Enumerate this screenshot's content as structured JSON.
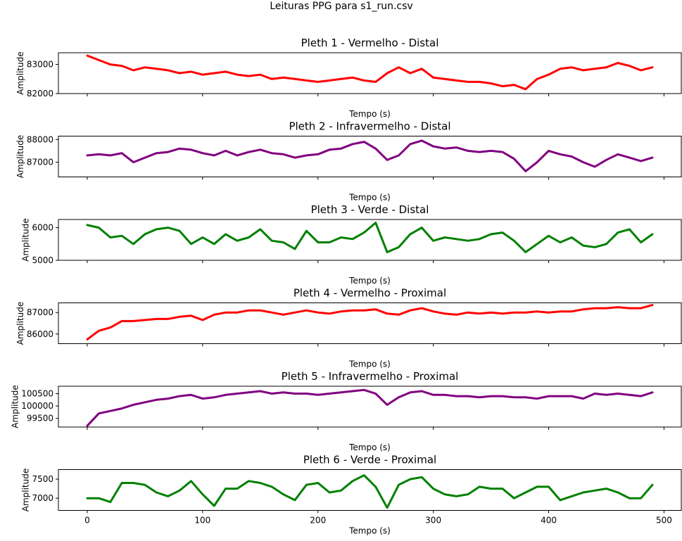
{
  "figure": {
    "suptitle": "Leituras PPG para s1_run.csv"
  },
  "chart_data": [
    {
      "type": "line",
      "title": "Pleth 1 - Vermelho - Distal",
      "xlabel": "Tempo (s)",
      "ylabel": "Amplitude",
      "xlim": [
        -25,
        515
      ],
      "ylim": [
        82000,
        83400
      ],
      "yticks": [
        82000,
        83000
      ],
      "xticks": [
        0,
        100,
        200,
        300,
        400,
        500
      ],
      "show_xticklabels": false,
      "grid": false,
      "series": [
        {
          "color": "#ff0000",
          "x": [
            0,
            10,
            20,
            30,
            40,
            50,
            60,
            70,
            80,
            90,
            100,
            110,
            120,
            130,
            140,
            150,
            160,
            170,
            180,
            190,
            200,
            210,
            220,
            230,
            240,
            250,
            260,
            270,
            280,
            290,
            300,
            310,
            320,
            330,
            340,
            350,
            360,
            370,
            380,
            390,
            400,
            410,
            420,
            430,
            440,
            450,
            460,
            470,
            480,
            490
          ],
          "y": [
            83300,
            83150,
            83000,
            82950,
            82800,
            82900,
            82850,
            82800,
            82700,
            82750,
            82650,
            82700,
            82750,
            82650,
            82600,
            82650,
            82500,
            82550,
            82500,
            82450,
            82400,
            82450,
            82500,
            82550,
            82450,
            82400,
            82700,
            82900,
            82700,
            82850,
            82550,
            82500,
            82450,
            82400,
            82400,
            82350,
            82250,
            82300,
            82150,
            82500,
            82650,
            82850,
            82900,
            82800,
            82850,
            82900,
            83050,
            82950,
            82800,
            82900
          ]
        }
      ]
    },
    {
      "type": "line",
      "title": "Pleth 2 - Infravermelho - Distal",
      "xlabel": "Tempo (s)",
      "ylabel": "Amplitude",
      "xlim": [
        -25,
        515
      ],
      "ylim": [
        86350,
        88150
      ],
      "yticks": [
        87000,
        88000
      ],
      "xticks": [
        0,
        100,
        200,
        300,
        400,
        500
      ],
      "show_xticklabels": false,
      "grid": false,
      "series": [
        {
          "color": "#800080",
          "x": [
            0,
            10,
            20,
            30,
            40,
            50,
            60,
            70,
            80,
            90,
            100,
            110,
            120,
            130,
            140,
            150,
            160,
            170,
            180,
            190,
            200,
            210,
            220,
            230,
            240,
            250,
            260,
            270,
            280,
            290,
            300,
            310,
            320,
            330,
            340,
            350,
            360,
            370,
            380,
            390,
            400,
            410,
            420,
            430,
            440,
            450,
            460,
            470,
            480,
            490
          ],
          "y": [
            87300,
            87350,
            87300,
            87400,
            87000,
            87200,
            87400,
            87450,
            87600,
            87550,
            87400,
            87300,
            87500,
            87300,
            87450,
            87550,
            87400,
            87350,
            87200,
            87300,
            87350,
            87550,
            87600,
            87800,
            87900,
            87600,
            87100,
            87300,
            87800,
            87950,
            87700,
            87600,
            87650,
            87500,
            87450,
            87500,
            87450,
            87150,
            86600,
            87000,
            87500,
            87350,
            87250,
            87000,
            86800,
            87100,
            87350,
            87200,
            87050,
            87200
          ]
        }
      ]
    },
    {
      "type": "line",
      "title": "Pleth 3 - Verde - Distal",
      "xlabel": "Tempo (s)",
      "ylabel": "Amplitude",
      "xlim": [
        -25,
        515
      ],
      "ylim": [
        5000,
        6250
      ],
      "yticks": [
        5000,
        6000
      ],
      "xticks": [
        0,
        100,
        200,
        300,
        400,
        500
      ],
      "show_xticklabels": false,
      "grid": false,
      "series": [
        {
          "color": "#008000",
          "x": [
            0,
            10,
            20,
            30,
            40,
            50,
            60,
            70,
            80,
            90,
            100,
            110,
            120,
            130,
            140,
            150,
            160,
            170,
            180,
            190,
            200,
            210,
            220,
            230,
            240,
            250,
            260,
            270,
            280,
            290,
            300,
            310,
            320,
            330,
            340,
            350,
            360,
            370,
            380,
            390,
            400,
            410,
            420,
            430,
            440,
            450,
            460,
            470,
            480,
            490
          ],
          "y": [
            6080,
            6000,
            5700,
            5750,
            5500,
            5800,
            5950,
            6000,
            5900,
            5500,
            5700,
            5500,
            5800,
            5600,
            5700,
            5950,
            5600,
            5550,
            5350,
            5900,
            5550,
            5550,
            5700,
            5650,
            5850,
            6150,
            5250,
            5400,
            5800,
            6000,
            5600,
            5700,
            5650,
            5600,
            5650,
            5800,
            5850,
            5600,
            5250,
            5500,
            5750,
            5550,
            5700,
            5450,
            5400,
            5500,
            5850,
            5950,
            5550,
            5800
          ]
        }
      ]
    },
    {
      "type": "line",
      "title": "Pleth 4 - Vermelho - Proximal",
      "xlabel": "Tempo (s)",
      "ylabel": "Amplitude",
      "xlim": [
        -25,
        515
      ],
      "ylim": [
        85550,
        87450
      ],
      "yticks": [
        86000,
        87000
      ],
      "xticks": [
        0,
        100,
        200,
        300,
        400,
        500
      ],
      "show_xticklabels": false,
      "grid": false,
      "series": [
        {
          "color": "#ff0000",
          "x": [
            0,
            10,
            20,
            30,
            40,
            50,
            60,
            70,
            80,
            90,
            100,
            110,
            120,
            130,
            140,
            150,
            160,
            170,
            180,
            190,
            200,
            210,
            220,
            230,
            240,
            250,
            260,
            270,
            280,
            290,
            300,
            310,
            320,
            330,
            340,
            350,
            360,
            370,
            380,
            390,
            400,
            410,
            420,
            430,
            440,
            450,
            460,
            470,
            480,
            490
          ],
          "y": [
            85750,
            86150,
            86300,
            86600,
            86600,
            86650,
            86700,
            86700,
            86800,
            86850,
            86650,
            86900,
            87000,
            87000,
            87100,
            87100,
            87000,
            86900,
            87000,
            87100,
            87000,
            86950,
            87050,
            87100,
            87100,
            87150,
            86950,
            86900,
            87100,
            87200,
            87050,
            86950,
            86900,
            87000,
            86950,
            87000,
            86950,
            87000,
            87000,
            87050,
            87000,
            87050,
            87050,
            87150,
            87200,
            87200,
            87250,
            87200,
            87200,
            87350
          ]
        }
      ]
    },
    {
      "type": "line",
      "title": "Pleth 5 - Infravermelho - Proximal",
      "xlabel": "Tempo (s)",
      "ylabel": "Amplitude",
      "xlim": [
        -25,
        515
      ],
      "ylim": [
        99150,
        100800
      ],
      "yticks": [
        99500,
        100000,
        100500
      ],
      "xticks": [
        0,
        100,
        200,
        300,
        400,
        500
      ],
      "show_xticklabels": false,
      "grid": false,
      "series": [
        {
          "color": "#800080",
          "x": [
            0,
            10,
            20,
            30,
            40,
            50,
            60,
            70,
            80,
            90,
            100,
            110,
            120,
            130,
            140,
            150,
            160,
            170,
            180,
            190,
            200,
            210,
            220,
            230,
            240,
            250,
            260,
            270,
            280,
            290,
            300,
            310,
            320,
            330,
            340,
            350,
            360,
            370,
            380,
            390,
            400,
            410,
            420,
            430,
            440,
            450,
            460,
            470,
            480,
            490
          ],
          "y": [
            99200,
            99700,
            99800,
            99900,
            100050,
            100150,
            100250,
            100300,
            100400,
            100450,
            100300,
            100350,
            100450,
            100500,
            100550,
            100600,
            100500,
            100550,
            100500,
            100500,
            100450,
            100500,
            100550,
            100600,
            100650,
            100500,
            100050,
            100350,
            100550,
            100600,
            100450,
            100450,
            100400,
            100400,
            100350,
            100400,
            100400,
            100350,
            100350,
            100300,
            100400,
            100400,
            100400,
            100300,
            100500,
            100450,
            100500,
            100450,
            100400,
            100550
          ]
        }
      ]
    },
    {
      "type": "line",
      "title": "Pleth 6 - Verde - Proximal",
      "xlabel": "Tempo (s)",
      "ylabel": "Amplitude",
      "xlim": [
        -25,
        515
      ],
      "ylim": [
        6680,
        7750
      ],
      "yticks": [
        7000,
        7500
      ],
      "xticks": [
        0,
        100,
        200,
        300,
        400,
        500
      ],
      "show_xticklabels": true,
      "grid": false,
      "series": [
        {
          "color": "#008000",
          "x": [
            0,
            10,
            20,
            30,
            40,
            50,
            60,
            70,
            80,
            90,
            100,
            110,
            120,
            130,
            140,
            150,
            160,
            170,
            180,
            190,
            200,
            210,
            220,
            230,
            240,
            250,
            260,
            270,
            280,
            290,
            300,
            310,
            320,
            330,
            340,
            350,
            360,
            370,
            380,
            390,
            400,
            410,
            420,
            430,
            440,
            450,
            460,
            470,
            480,
            490
          ],
          "y": [
            7000,
            7000,
            6900,
            7400,
            7400,
            7350,
            7150,
            7050,
            7200,
            7450,
            7100,
            6800,
            7250,
            7250,
            7450,
            7400,
            7300,
            7100,
            6950,
            7350,
            7400,
            7150,
            7200,
            7450,
            7600,
            7300,
            6750,
            7350,
            7500,
            7550,
            7250,
            7100,
            7050,
            7100,
            7300,
            7250,
            7250,
            7000,
            7150,
            7300,
            7300,
            6950,
            7050,
            7150,
            7200,
            7250,
            7150,
            7000,
            7000,
            7350
          ]
        }
      ]
    }
  ]
}
